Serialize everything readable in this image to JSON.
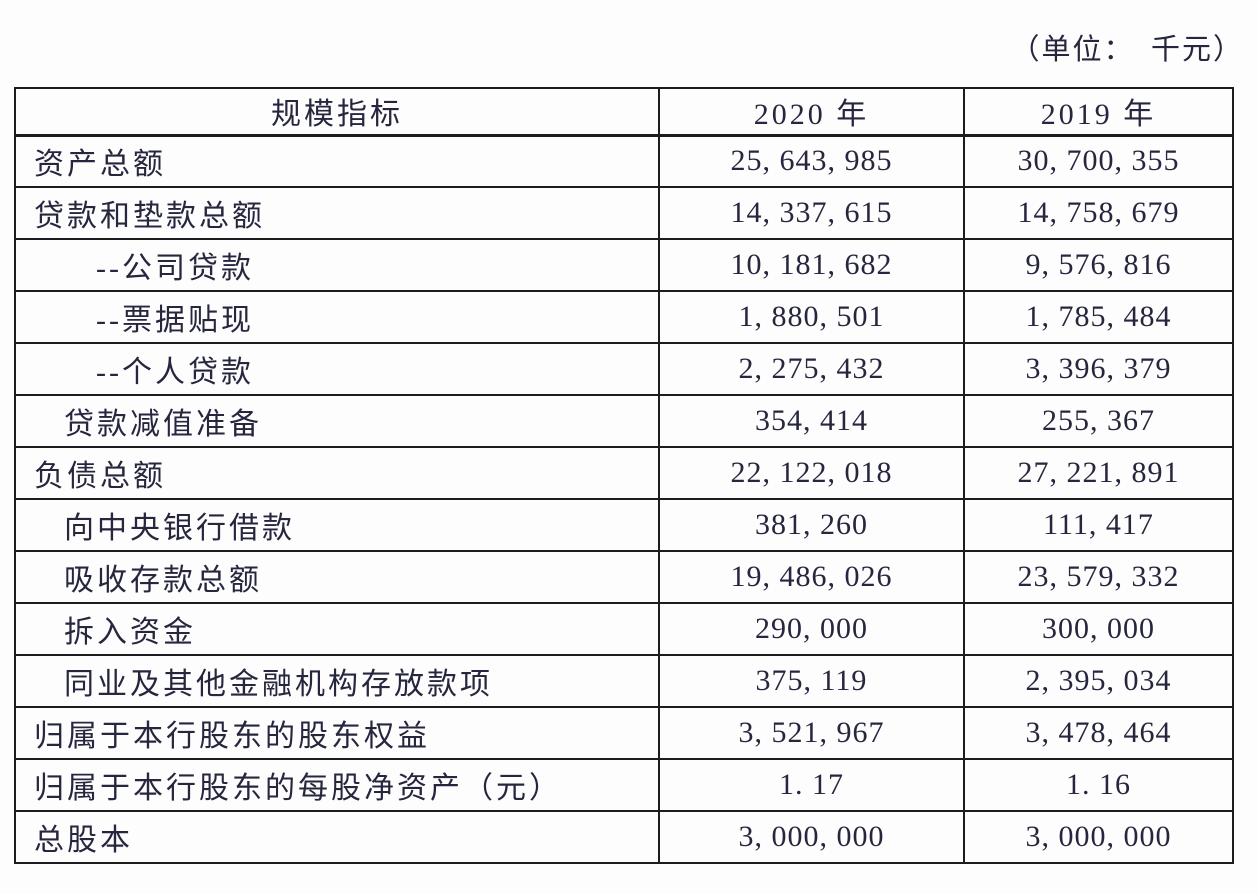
{
  "page": {
    "unit_note": "（单位：　千元）"
  },
  "colors": {
    "text": "#26263e",
    "border": "#1c1c1c",
    "background": "#fdfdfd"
  },
  "table": {
    "columns": [
      "规模指标",
      "2020 年",
      "2019 年"
    ],
    "rows": [
      {
        "label": "资产总额",
        "indent": 0,
        "y2020": "25, 643, 985",
        "y2019": "30, 700, 355"
      },
      {
        "label": "贷款和垫款总额",
        "indent": 0,
        "y2020": "14, 337, 615",
        "y2019": "14, 758, 679"
      },
      {
        "label": "--公司贷款",
        "indent": 2,
        "y2020": "10, 181, 682",
        "y2019": "9, 576, 816"
      },
      {
        "label": "--票据贴现",
        "indent": 2,
        "y2020": "1, 880, 501",
        "y2019": "1, 785, 484"
      },
      {
        "label": "--个人贷款",
        "indent": 2,
        "y2020": "2, 275, 432",
        "y2019": "3, 396, 379"
      },
      {
        "label": "贷款减值准备",
        "indent": 1,
        "y2020": "354, 414",
        "y2019": "255, 367"
      },
      {
        "label": "负债总额",
        "indent": 0,
        "y2020": "22, 122, 018",
        "y2019": "27, 221, 891"
      },
      {
        "label": "向中央银行借款",
        "indent": 1,
        "y2020": "381, 260",
        "y2019": "111, 417"
      },
      {
        "label": "吸收存款总额",
        "indent": 1,
        "y2020": "19, 486, 026",
        "y2019": "23, 579, 332"
      },
      {
        "label": "拆入资金",
        "indent": 1,
        "y2020": "290, 000",
        "y2019": "300, 000"
      },
      {
        "label": "同业及其他金融机构存放款项",
        "indent": 1,
        "y2020": "375, 119",
        "y2019": "2, 395, 034"
      },
      {
        "label": "归属于本行股东的股东权益",
        "indent": 0,
        "y2020": "3, 521, 967",
        "y2019": "3, 478, 464"
      },
      {
        "label": "归属于本行股东的每股净资产（元）",
        "indent": 0,
        "y2020": "1. 17",
        "y2019": "1. 16"
      },
      {
        "label": "总股本",
        "indent": 0,
        "y2020": "3, 000, 000",
        "y2019": "3, 000, 000"
      }
    ]
  }
}
